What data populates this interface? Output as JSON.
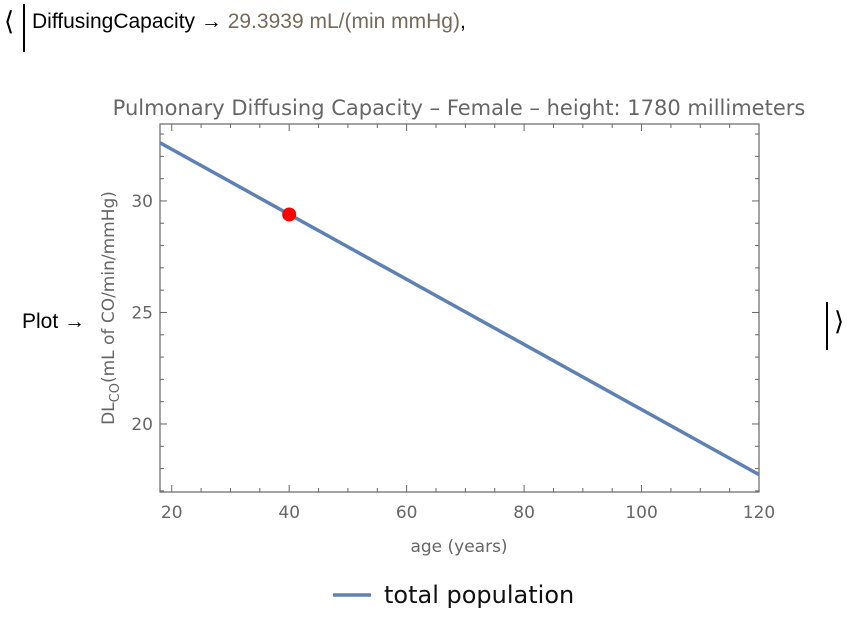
{
  "output": {
    "open_bracket": "⟨",
    "close_bracket": "⟩",
    "key1": "DiffusingCapacity",
    "arrow": "→",
    "value1": "29.3939 mL/(min mmHg)",
    "separator": ",",
    "key2": "Plot",
    "value_color": "#766a5a"
  },
  "chart_data": {
    "type": "line",
    "title": "Pulmonary Diffusing Capacity – Female – height: 1780 millimeters",
    "title_visible": "monary Diffusing Capacity – Female – height: 1780 millimet",
    "xlabel": "age (years)",
    "ylabel": "DLCO(mL of CO/min/mmHg)",
    "ylabel_main": "DL",
    "ylabel_sub": "CO",
    "ylabel_rest": "(mL of CO/min/mmHg)",
    "xlim": [
      18,
      120
    ],
    "ylim": [
      16.95,
      33.45
    ],
    "x_ticks": [
      20,
      40,
      60,
      80,
      100,
      120
    ],
    "x_tick_labels": [
      "20",
      "40",
      "60",
      "80",
      "100",
      "120"
    ],
    "y_ticks": [
      20,
      25,
      30
    ],
    "y_tick_labels": [
      "20",
      "25",
      "30"
    ],
    "x_minor_step": 5,
    "y_minor_step": 1,
    "grid": false,
    "series": [
      {
        "name": "total population",
        "color": "#5e81b5",
        "x": [
          18,
          120
        ],
        "y": [
          32.61,
          17.73
        ]
      }
    ],
    "highlight_point": {
      "x": 40,
      "y": 29.3939,
      "color": "#ff0000"
    },
    "legend": {
      "entries": [
        "total population"
      ],
      "placement": "bottom"
    }
  }
}
